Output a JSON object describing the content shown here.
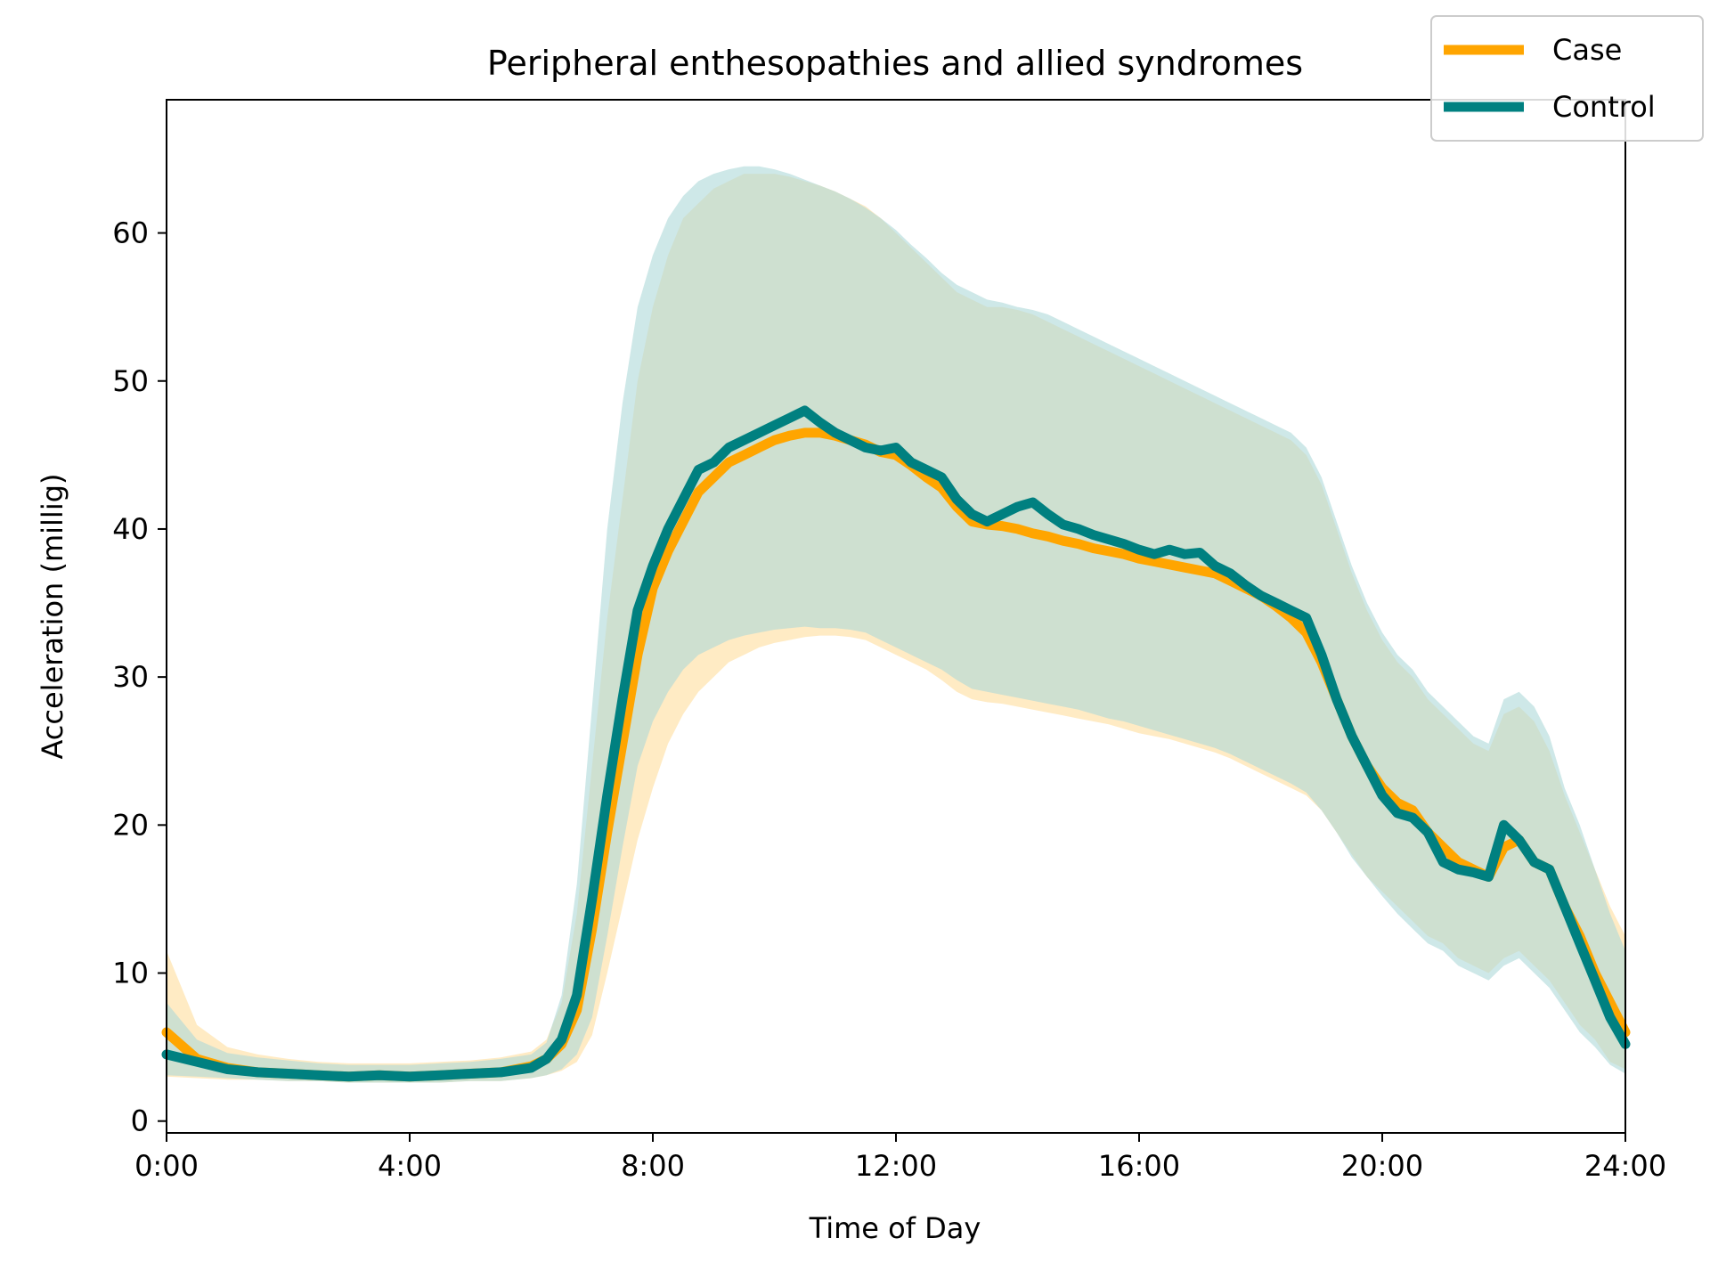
{
  "chart_data": {
    "type": "line",
    "title": "Peripheral enthesopathies and allied syndromes",
    "xlabel": "Time of Day",
    "ylabel": "Acceleration (millig)",
    "xlim": [
      0,
      24
    ],
    "ylim": [
      -0.8,
      69
    ],
    "x_ticks": [
      0,
      4,
      8,
      12,
      16,
      20,
      24
    ],
    "x_tick_labels": [
      "0:00",
      "4:00",
      "8:00",
      "12:00",
      "16:00",
      "20:00",
      "24:00"
    ],
    "y_ticks": [
      0,
      10,
      20,
      30,
      40,
      50,
      60
    ],
    "y_tick_labels": [
      "0",
      "10",
      "20",
      "30",
      "40",
      "50",
      "60"
    ],
    "grid": false,
    "legend_position": "top-right",
    "x": [
      0,
      0.5,
      1,
      1.5,
      2,
      2.5,
      3,
      3.5,
      4,
      4.5,
      5,
      5.5,
      6,
      6.25,
      6.5,
      6.75,
      7,
      7.25,
      7.5,
      7.75,
      8,
      8.25,
      8.5,
      8.75,
      9,
      9.25,
      9.5,
      9.75,
      10,
      10.25,
      10.5,
      10.75,
      11,
      11.25,
      11.5,
      11.75,
      12,
      12.25,
      12.5,
      12.75,
      13,
      13.25,
      13.5,
      13.75,
      14,
      14.25,
      14.5,
      14.75,
      15,
      15.25,
      15.5,
      15.75,
      16,
      16.25,
      16.5,
      16.75,
      17,
      17.25,
      17.5,
      17.75,
      18,
      18.25,
      18.5,
      18.75,
      19,
      19.25,
      19.5,
      19.75,
      20,
      20.25,
      20.5,
      20.75,
      21,
      21.25,
      21.5,
      21.75,
      22,
      22.25,
      22.5,
      22.75,
      23,
      23.25,
      23.5,
      23.75,
      24
    ],
    "series": [
      {
        "name": "Case",
        "color": "#FFA500",
        "band_color": "#FFE4B0",
        "values": [
          6.0,
          4.2,
          3.6,
          3.3,
          3.2,
          3.1,
          3.0,
          3.1,
          3.0,
          3.1,
          3.2,
          3.3,
          3.7,
          4.2,
          5.2,
          7.5,
          13.0,
          19.5,
          25.5,
          31.5,
          36.0,
          38.5,
          40.5,
          42.5,
          43.5,
          44.5,
          45.0,
          45.5,
          46.0,
          46.3,
          46.5,
          46.5,
          46.3,
          46.0,
          45.7,
          45.2,
          45.0,
          44.3,
          43.5,
          42.8,
          41.5,
          40.5,
          40.3,
          40.2,
          40.0,
          39.7,
          39.5,
          39.2,
          39.0,
          38.7,
          38.5,
          38.3,
          38.0,
          37.8,
          37.6,
          37.4,
          37.2,
          37.0,
          36.5,
          36.0,
          35.5,
          34.8,
          34.0,
          33.0,
          31.0,
          28.5,
          26.0,
          24.0,
          22.5,
          21.5,
          21.0,
          19.5,
          18.5,
          17.5,
          17.0,
          16.5,
          18.5,
          19.0,
          17.5,
          17.0,
          14.5,
          12.5,
          10.0,
          8.0,
          6.0
        ],
        "band_lower": [
          3.0,
          2.9,
          2.8,
          2.8,
          2.7,
          2.7,
          2.6,
          2.6,
          2.6,
          2.6,
          2.7,
          2.7,
          2.9,
          3.1,
          3.4,
          4.0,
          5.8,
          10.0,
          14.5,
          19.0,
          22.5,
          25.5,
          27.5,
          29.0,
          30.0,
          31.0,
          31.5,
          32.0,
          32.3,
          32.5,
          32.7,
          32.8,
          32.8,
          32.7,
          32.5,
          32.0,
          31.5,
          31.0,
          30.5,
          29.8,
          29.0,
          28.5,
          28.3,
          28.2,
          28.0,
          27.8,
          27.6,
          27.4,
          27.2,
          27.0,
          26.8,
          26.5,
          26.2,
          26.0,
          25.8,
          25.5,
          25.2,
          24.9,
          24.5,
          24.0,
          23.5,
          23.0,
          22.5,
          22.0,
          21.0,
          19.5,
          18.0,
          16.5,
          15.5,
          14.5,
          13.5,
          12.5,
          12.0,
          11.0,
          10.5,
          10.0,
          11.0,
          11.5,
          10.5,
          9.5,
          8.0,
          6.5,
          5.5,
          4.0,
          3.5
        ],
        "band_upper": [
          11.5,
          6.5,
          5.0,
          4.5,
          4.2,
          4.0,
          3.9,
          3.9,
          3.9,
          4.0,
          4.1,
          4.3,
          4.7,
          5.5,
          8.0,
          14.0,
          24.0,
          34.0,
          42.0,
          50.0,
          55.0,
          58.5,
          61.0,
          62.0,
          63.0,
          63.5,
          64.0,
          64.0,
          64.0,
          63.8,
          63.5,
          63.2,
          62.8,
          62.3,
          61.8,
          61.0,
          60.0,
          59.0,
          58.0,
          57.0,
          56.0,
          55.5,
          55.0,
          55.0,
          54.8,
          54.5,
          54.0,
          53.5,
          53.0,
          52.5,
          52.0,
          51.5,
          51.0,
          50.5,
          50.0,
          49.5,
          49.0,
          48.5,
          48.0,
          47.5,
          47.0,
          46.5,
          46.0,
          45.0,
          43.0,
          40.0,
          37.0,
          34.5,
          32.5,
          31.0,
          30.0,
          28.5,
          27.5,
          26.5,
          25.5,
          25.0,
          27.5,
          28.0,
          27.0,
          25.0,
          22.0,
          19.5,
          17.0,
          14.5,
          12.5
        ]
      },
      {
        "name": "Control",
        "color": "#008080",
        "band_color": "#ADD8D8",
        "values": [
          4.5,
          4.0,
          3.5,
          3.3,
          3.2,
          3.1,
          3.0,
          3.1,
          3.0,
          3.1,
          3.2,
          3.3,
          3.6,
          4.2,
          5.5,
          8.5,
          15.0,
          22.0,
          28.5,
          34.5,
          37.5,
          40.0,
          42.0,
          44.0,
          44.5,
          45.5,
          46.0,
          46.5,
          47.0,
          47.5,
          48.0,
          47.2,
          46.5,
          46.0,
          45.5,
          45.3,
          45.5,
          44.5,
          44.0,
          43.5,
          42.0,
          41.0,
          40.5,
          41.0,
          41.5,
          41.8,
          41.0,
          40.3,
          40.0,
          39.6,
          39.3,
          39.0,
          38.6,
          38.3,
          38.6,
          38.3,
          38.4,
          37.5,
          37.0,
          36.2,
          35.5,
          35.0,
          34.5,
          34.0,
          31.5,
          28.5,
          26.0,
          24.0,
          22.0,
          20.8,
          20.5,
          19.5,
          17.5,
          17.0,
          16.8,
          16.5,
          20.0,
          19.0,
          17.5,
          17.0,
          14.5,
          12.0,
          9.5,
          7.0,
          5.2
        ],
        "band_lower": [
          3.1,
          3.0,
          2.9,
          2.8,
          2.7,
          2.7,
          2.6,
          2.6,
          2.6,
          2.6,
          2.7,
          2.7,
          2.9,
          3.1,
          3.5,
          4.5,
          7.0,
          12.5,
          18.5,
          24.0,
          27.0,
          29.0,
          30.5,
          31.5,
          32.0,
          32.5,
          32.8,
          33.0,
          33.2,
          33.3,
          33.4,
          33.3,
          33.3,
          33.2,
          33.0,
          32.5,
          32.0,
          31.5,
          31.0,
          30.5,
          29.8,
          29.2,
          29.0,
          28.8,
          28.6,
          28.4,
          28.2,
          28.0,
          27.8,
          27.5,
          27.2,
          27.0,
          26.7,
          26.4,
          26.1,
          25.8,
          25.5,
          25.2,
          24.8,
          24.3,
          23.8,
          23.3,
          22.8,
          22.2,
          21.0,
          19.5,
          17.8,
          16.5,
          15.2,
          14.0,
          13.0,
          12.0,
          11.5,
          10.5,
          10.0,
          9.5,
          10.5,
          11.0,
          10.0,
          9.0,
          7.5,
          6.0,
          5.0,
          3.8,
          3.2
        ],
        "band_upper": [
          8.0,
          5.5,
          4.6,
          4.3,
          4.1,
          3.9,
          3.8,
          3.8,
          3.8,
          3.9,
          4.0,
          4.2,
          4.5,
          5.3,
          8.5,
          16.0,
          28.0,
          40.0,
          48.5,
          55.0,
          58.5,
          61.0,
          62.5,
          63.5,
          64.0,
          64.3,
          64.5,
          64.5,
          64.3,
          64.0,
          63.6,
          63.2,
          62.8,
          62.3,
          61.7,
          61.0,
          60.2,
          59.2,
          58.3,
          57.3,
          56.5,
          56.0,
          55.5,
          55.3,
          55.0,
          54.8,
          54.5,
          54.0,
          53.5,
          53.0,
          52.5,
          52.0,
          51.5,
          51.0,
          50.5,
          50.0,
          49.5,
          49.0,
          48.5,
          48.0,
          47.5,
          47.0,
          46.5,
          45.5,
          43.5,
          40.5,
          37.5,
          35.0,
          33.0,
          31.5,
          30.5,
          29.0,
          28.0,
          27.0,
          26.0,
          25.5,
          28.5,
          29.0,
          28.0,
          26.0,
          22.5,
          20.0,
          17.0,
          14.0,
          11.5
        ]
      }
    ]
  }
}
